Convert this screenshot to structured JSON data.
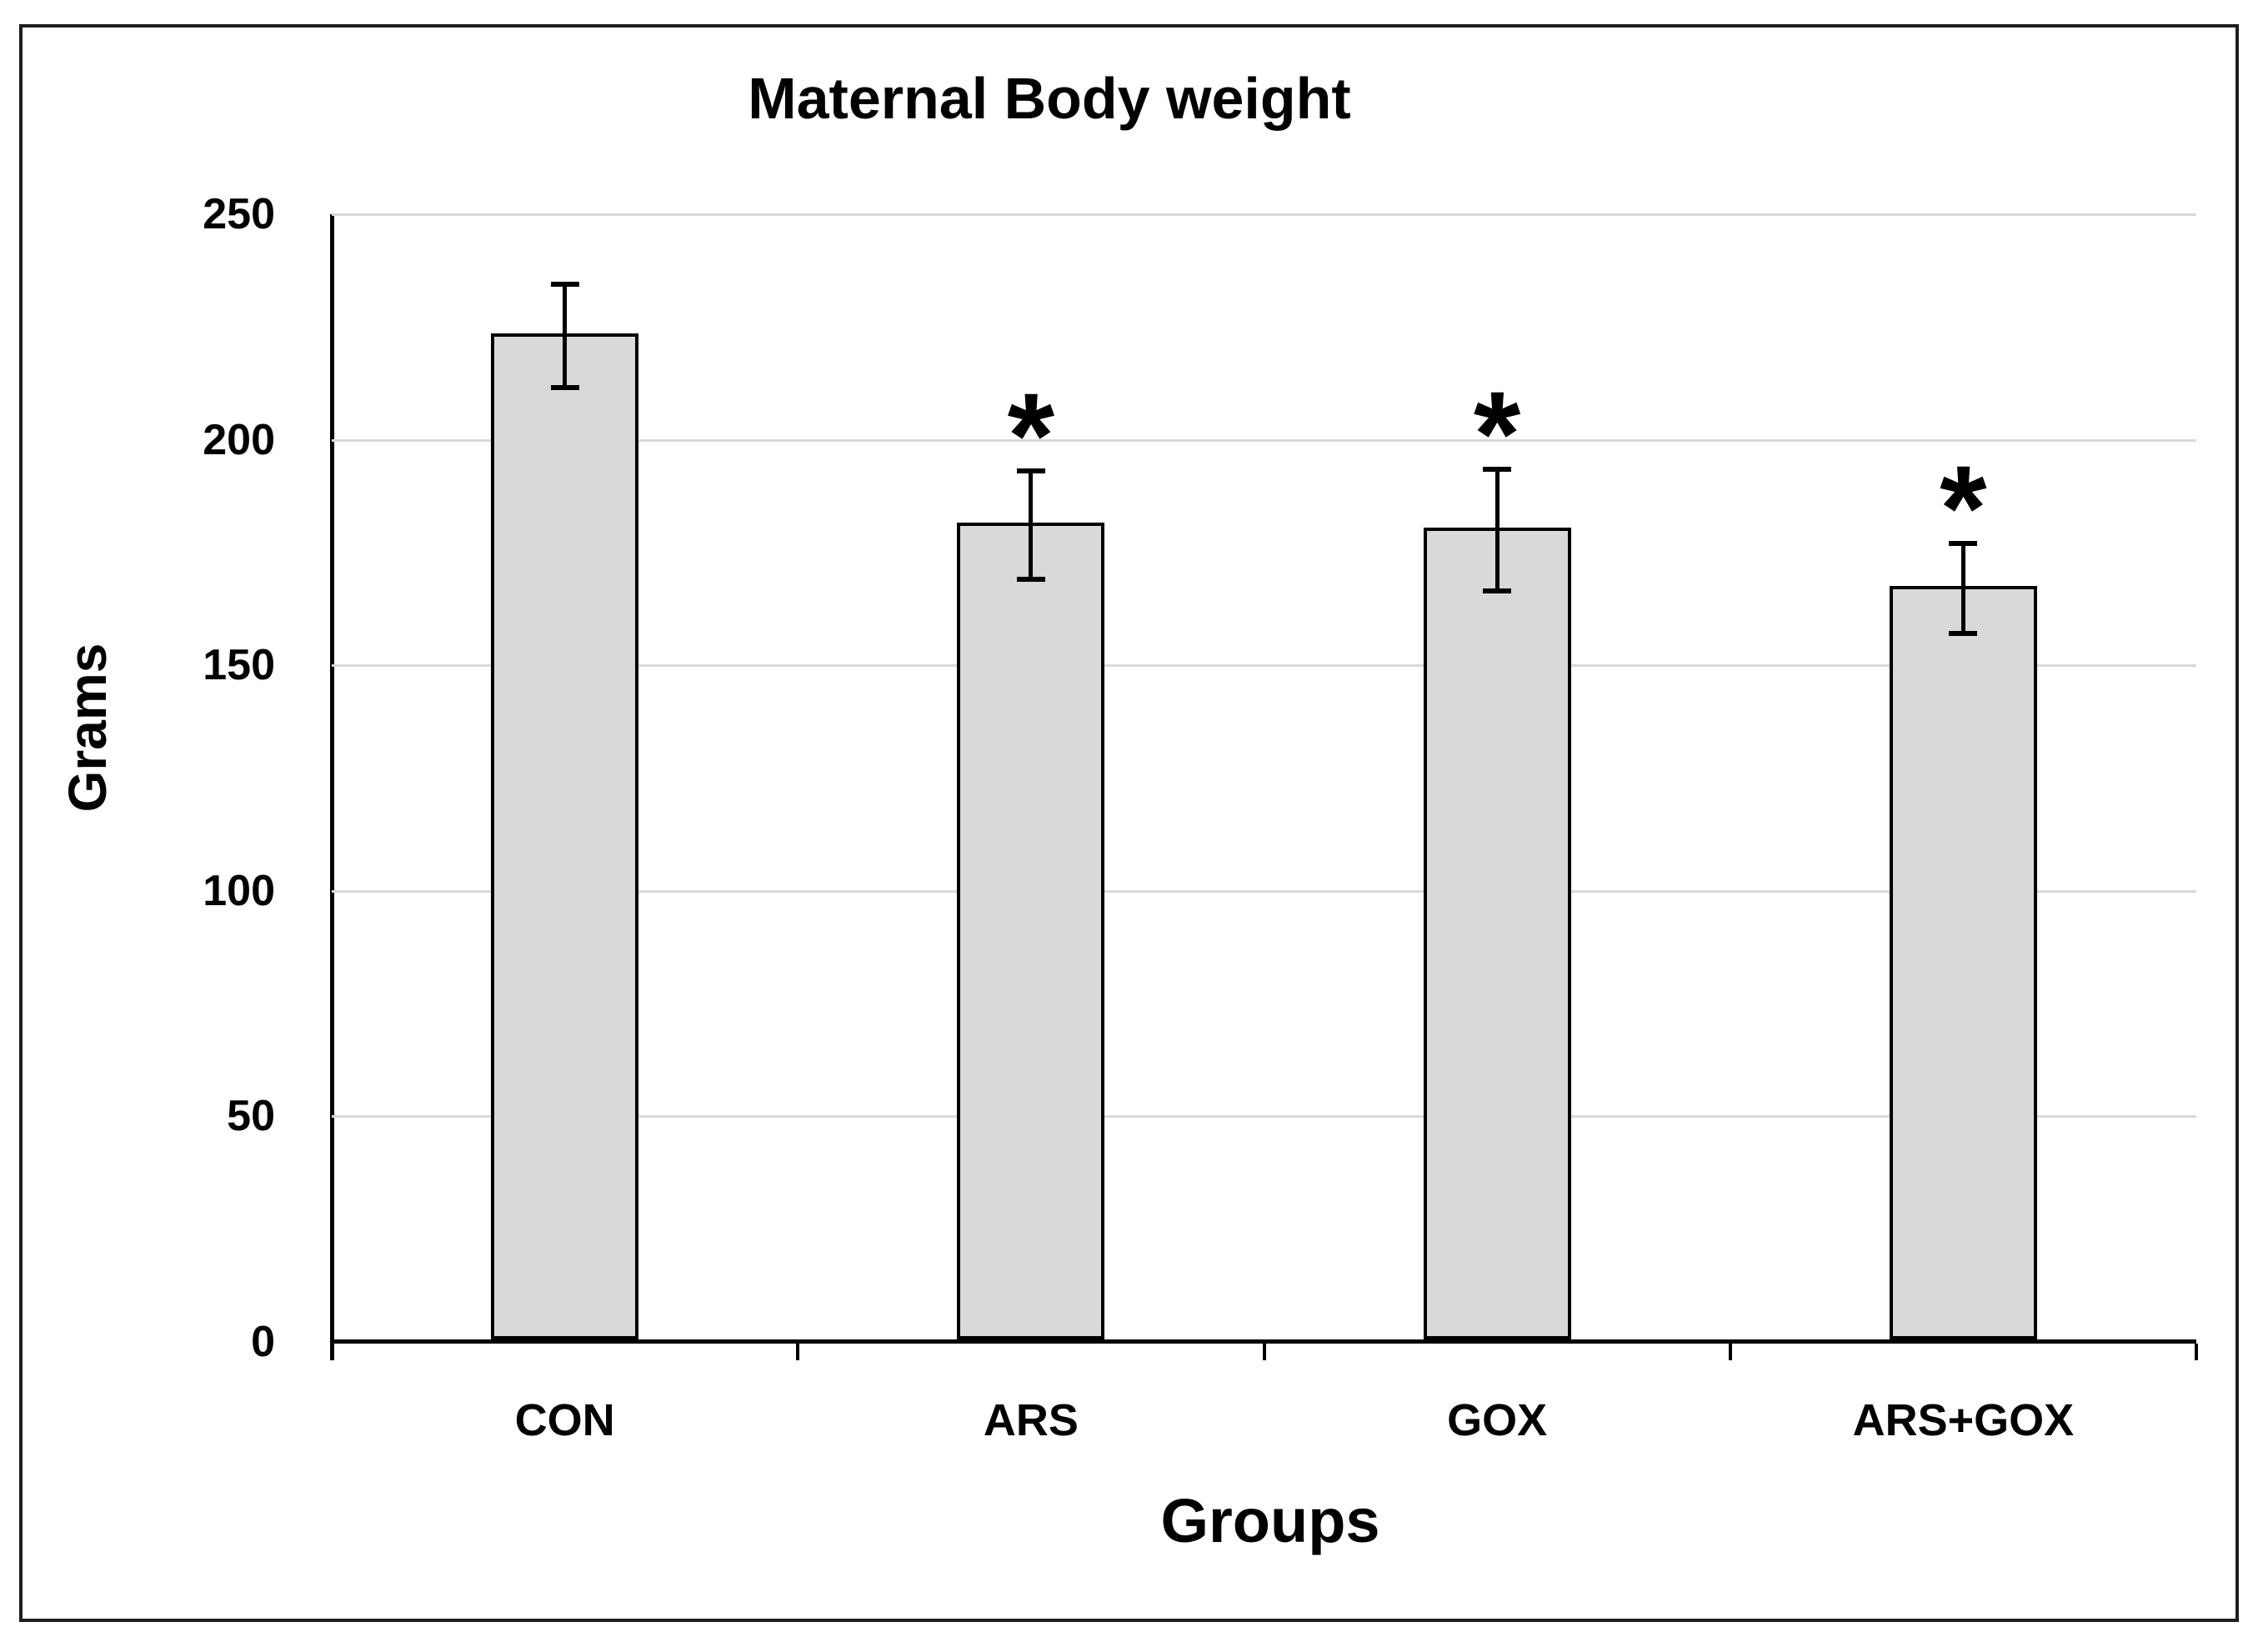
{
  "figure": {
    "background_color": "#ffffff",
    "border_color": "#1f1f1f"
  },
  "chart_data": {
    "type": "bar",
    "title": "Maternal Body weight",
    "xlabel": "Groups",
    "ylabel": "Grams",
    "categories": [
      "CON",
      "ARS",
      "GOX",
      "ARS+GOX"
    ],
    "values": [
      223,
      181,
      180,
      167
    ],
    "error_bars": [
      11.5,
      12,
      13.5,
      10
    ],
    "significance_markers": [
      "",
      "*",
      "*",
      "*"
    ],
    "ylim": [
      0,
      250
    ],
    "yticks": [
      0,
      50,
      100,
      150,
      200,
      250
    ],
    "grid": "horizontal",
    "legend": "none",
    "bar_fill_color": "#d9d9d9",
    "bar_border_color": "#000000",
    "gridline_color": "#d9d9d9",
    "error_bar_color": "#000000",
    "significance_color": "#000000"
  }
}
